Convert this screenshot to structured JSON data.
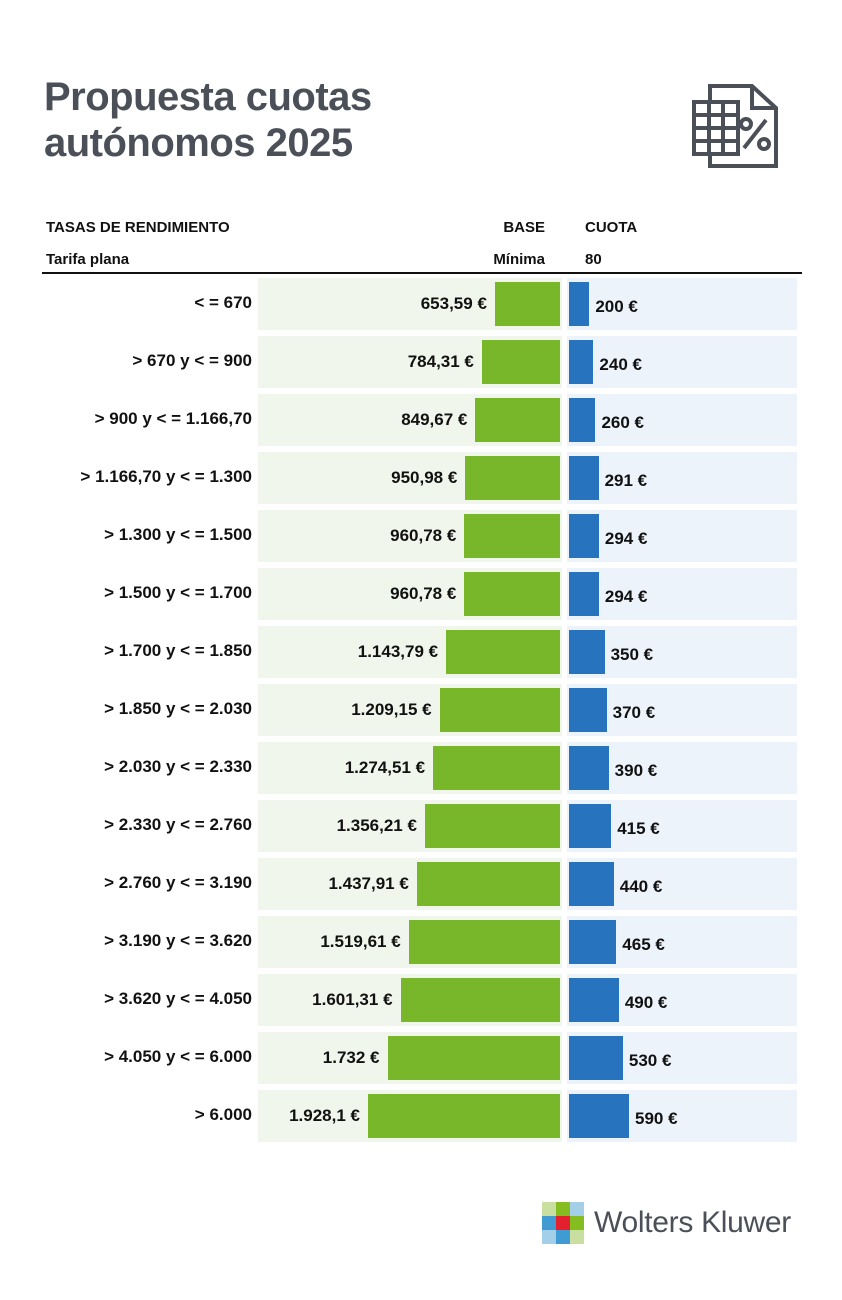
{
  "title_lines": [
    "Propuesta cuotas",
    "autónomos 2025"
  ],
  "icon": "spreadsheet-percent-icon",
  "headers": {
    "tasas": "TASAS DE RENDIMIENTO",
    "base": "BASE",
    "cuota": "CUOTA",
    "tarifa_label": "Tarifa plana",
    "tarifa_base": "Mínima",
    "tarifa_cuota": "80"
  },
  "colors": {
    "base_bar": "#78b72a",
    "cuota_bar": "#2873be",
    "base_bg": "#f1f6ec",
    "cuota_bg": "#edf3fb",
    "title": "#4b4f58"
  },
  "chart_data": {
    "type": "bar",
    "categories": [
      "< = 670",
      "> 670 y < = 900",
      "> 900 y < = 1.166,70",
      "> 1.166,70 y < = 1.300",
      "> 1.300 y < = 1.500",
      "> 1.500 y < = 1.700",
      "> 1.700 y < = 1.850",
      "> 1.850 y < = 2.030",
      "> 2.030 y < = 2.330",
      "> 2.330 y < = 2.760",
      "> 2.760 y < = 3.190",
      "> 3.190 y < = 3.620",
      "> 3.620 y < = 4.050",
      "> 4.050 y < = 6.000",
      "> 6.000"
    ],
    "series": [
      {
        "name": "BASE",
        "values": [
          653.59,
          784.31,
          849.67,
          950.98,
          960.78,
          960.78,
          1143.79,
          1209.15,
          1274.51,
          1356.21,
          1437.91,
          1519.61,
          1601.31,
          1732,
          1928.1
        ],
        "labels": [
          "653,59 €",
          "784,31 €",
          "849,67 €",
          "950,98 €",
          "960,78 €",
          "960,78 €",
          "1.143,79 €",
          "1.209,15 €",
          "1.274,51 €",
          "1.356,21 €",
          "1.437,91 €",
          "1.519,61 €",
          "1.601,31 €",
          "1.732 €",
          "1.928,1 €"
        ]
      },
      {
        "name": "CUOTA",
        "values": [
          200,
          240,
          260,
          291,
          294,
          294,
          350,
          370,
          390,
          415,
          440,
          465,
          490,
          530,
          590
        ],
        "labels": [
          "200 €",
          "240 €",
          "260 €",
          "291 €",
          "294 €",
          "294 €",
          "350 €",
          "370 €",
          "390 €",
          "415 €",
          "440 €",
          "465 €",
          "490 €",
          "530 €",
          "590 €"
        ]
      }
    ],
    "grid": false,
    "legend": "none"
  },
  "brand": "Wolters Kluwer"
}
